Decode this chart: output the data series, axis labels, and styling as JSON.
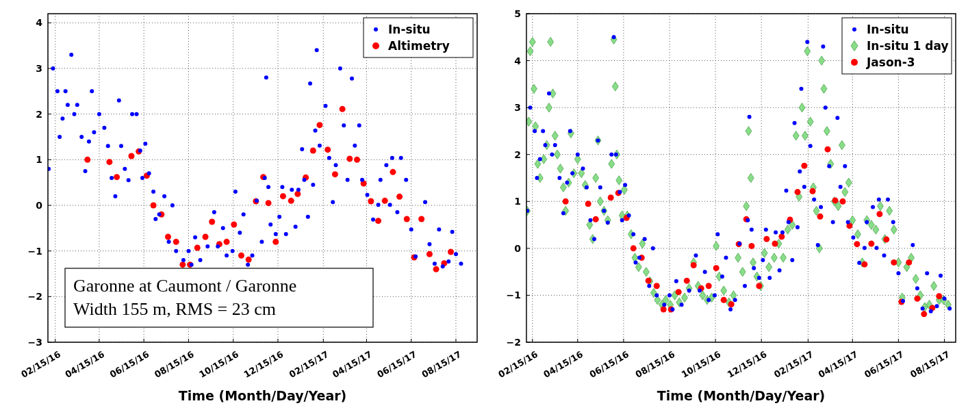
{
  "chart_data": [
    {
      "type": "scatter",
      "xlabel": "Time (Month/Day/Year)",
      "annotations": [
        "Garonne at Caumont / Garonne",
        "Width 155 m, RMS = 23 cm"
      ],
      "xlim": [
        "2016-02-05",
        "2017-09-13"
      ],
      "xticks": [
        {
          "value": "2016-02-15",
          "label": "02/15/16"
        },
        {
          "value": "2016-04-15",
          "label": "04/15/16"
        },
        {
          "value": "2016-06-15",
          "label": "06/15/16"
        },
        {
          "value": "2016-08-15",
          "label": "08/15/16"
        },
        {
          "value": "2016-10-15",
          "label": "10/15/16"
        },
        {
          "value": "2016-12-15",
          "label": "12/15/16"
        },
        {
          "value": "2017-02-15",
          "label": "02/15/17"
        },
        {
          "value": "2017-04-15",
          "label": "04/15/17"
        },
        {
          "value": "2017-06-15",
          "label": "06/15/17"
        },
        {
          "value": "2017-08-15",
          "label": "08/15/17"
        }
      ],
      "ylim": [
        -3,
        4.2
      ],
      "yticks": [
        -3,
        -2,
        -1,
        0,
        1,
        2,
        3,
        4
      ],
      "grid": true,
      "legend": "top right",
      "series": [
        {
          "name": "In-situ",
          "color": "#0000ff",
          "marker": "circle",
          "x": [
            "2016-02-06",
            "2016-02-08",
            "2016-02-12",
            "2016-02-15",
            "2016-02-18",
            "2016-02-21",
            "2016-02-25",
            "2016-02-29",
            "2016-03-03",
            "2016-03-05",
            "2016-03-08",
            "2016-03-12",
            "2016-03-16",
            "2016-03-22",
            "2016-03-27",
            "2016-04-01",
            "2016-04-05",
            "2016-04-08",
            "2016-04-15",
            "2016-04-22",
            "2016-04-27",
            "2016-05-02",
            "2016-05-07",
            "2016-05-12",
            "2016-05-15",
            "2016-05-20",
            "2016-05-25",
            "2016-05-30",
            "2016-06-02",
            "2016-06-05",
            "2016-06-10",
            "2016-06-13",
            "2016-06-17",
            "2016-06-22",
            "2016-06-28",
            "2016-07-01",
            "2016-07-06",
            "2016-07-13",
            "2016-07-19",
            "2016-07-24",
            "2016-07-29",
            "2016-08-08",
            "2016-08-15",
            "2016-08-19",
            "2016-08-24",
            "2016-08-31",
            "2016-09-10",
            "2016-09-19",
            "2016-09-24",
            "2016-10-01",
            "2016-10-06",
            "2016-10-14",
            "2016-10-18",
            "2016-10-24",
            "2016-10-29",
            "2016-11-04",
            "2016-11-10",
            "2016-11-16",
            "2016-11-23",
            "2016-11-27",
            "2016-11-29",
            "2016-12-02",
            "2016-12-05",
            "2016-12-12",
            "2016-12-17",
            "2016-12-21",
            "2016-12-26",
            "2017-01-03",
            "2017-01-08",
            "2017-01-12",
            "2017-01-17",
            "2017-01-20",
            "2017-01-25",
            "2017-01-28",
            "2017-02-01",
            "2017-02-04",
            "2017-02-06",
            "2017-02-10",
            "2017-02-14",
            "2017-02-18",
            "2017-02-23",
            "2017-02-28",
            "2017-03-04",
            "2017-03-07",
            "2017-03-10",
            "2017-03-15",
            "2017-03-20",
            "2017-03-26",
            "2017-03-30",
            "2017-04-05",
            "2017-04-09",
            "2017-04-16",
            "2017-04-24",
            "2017-05-01",
            "2017-05-04",
            "2017-05-12",
            "2017-05-17",
            "2017-05-20",
            "2017-05-27",
            "2017-06-01",
            "2017-06-08",
            "2017-06-15",
            "2017-06-21",
            "2017-07-04",
            "2017-07-10",
            "2017-07-17",
            "2017-07-23",
            "2017-07-28",
            "2017-08-05",
            "2017-08-10",
            "2017-08-15",
            "2017-08-22"
          ],
          "values": [
            0.8,
            null,
            3.0,
            null,
            2.5,
            1.5,
            1.9,
            2.5,
            2.2,
            null,
            3.3,
            2.0,
            2.2,
            1.5,
            0.75,
            1.4,
            2.5,
            1.6,
            2.0,
            1.7,
            1.3,
            0.6,
            0.2,
            2.3,
            1.3,
            0.8,
            0.55,
            2.0,
            null,
            2.0,
            1.2,
            0.6,
            1.35,
            0.7,
            0.3,
            -0.3,
            -0.2,
            0.2,
            -0.8,
            0.0,
            -1.0,
            -1.2,
            -1.0,
            -1.3,
            -0.7,
            -1.2,
            -0.9,
            -0.15,
            -0.9,
            -0.5,
            -1.1,
            -1.0,
            0.3,
            -0.6,
            -0.2,
            -1.3,
            -1.1,
            0.1,
            -0.8,
            0.6,
            2.8,
            0.4,
            -0.42,
            -0.63,
            -0.25,
            0.4,
            -0.63,
            0.34,
            -0.47,
            0.34,
            1.23,
            0.56,
            -0.25,
            2.67,
            0.45,
            1.64,
            3.4,
            1.31,
            null,
            2.18,
            1.04,
            0.07,
            0.88,
            null,
            3.0,
            1.75,
            0.56,
            2.78,
            1.31,
            1.75,
            0.56,
            0.23,
            -0.31,
            0.01,
            0.56,
            0.88,
            0.01,
            1.04,
            -0.15,
            1.04,
            0.56,
            -0.53,
            -1.12,
            0.07,
            -0.85,
            -1.28,
            -0.53,
            -1.34,
            -1.23,
            -0.58,
            -1.07,
            -1.28
          ]
        },
        {
          "name": "Altimetry",
          "color": "#ff0000",
          "marker": "circle",
          "x": [
            "2016-03-30",
            "2016-04-29",
            "2016-05-09",
            "2016-05-29",
            "2016-06-08",
            "2016-06-19",
            "2016-06-28",
            "2016-07-09",
            "2016-07-18",
            "2016-07-29",
            "2016-08-07",
            "2016-08-17",
            "2016-08-27",
            "2016-09-07",
            "2016-09-16",
            "2016-09-26",
            "2016-10-06",
            "2016-10-16",
            "2016-10-26",
            "2016-11-05",
            "2016-11-15",
            "2016-11-25",
            "2016-12-02",
            "2016-12-12",
            "2016-12-22",
            "2017-01-02",
            "2017-01-11",
            "2017-01-22",
            "2017-02-01",
            "2017-02-10",
            "2017-02-21",
            "2017-03-03",
            "2017-03-13",
            "2017-03-23",
            "2017-04-02",
            "2017-04-11",
            "2017-04-21",
            "2017-05-01",
            "2017-05-10",
            "2017-05-21",
            "2017-05-30",
            "2017-06-09",
            "2017-06-19",
            "2017-06-29",
            "2017-07-10",
            "2017-07-19",
            "2017-07-30",
            "2017-08-08"
          ],
          "values": [
            1.0,
            0.95,
            0.62,
            1.08,
            1.18,
            0.65,
            0.0,
            -0.2,
            -0.69,
            -0.8,
            -1.3,
            -1.3,
            -0.93,
            -0.69,
            -0.36,
            -0.85,
            -0.8,
            -0.42,
            -1.1,
            -1.19,
            0.09,
            0.62,
            0.05,
            -0.8,
            0.2,
            0.1,
            0.25,
            0.61,
            1.2,
            1.76,
            1.22,
            0.68,
            2.11,
            1.02,
            1.0,
            0.48,
            0.09,
            -0.34,
            0.1,
            0.73,
            0.19,
            -0.3,
            -1.14,
            -0.3,
            -1.07,
            -1.4,
            -1.27,
            -1.02
          ]
        }
      ]
    },
    {
      "type": "scatter",
      "xlabel": "Time (Month/Day/Year)",
      "xlim": [
        "2016-02-07",
        "2017-08-30"
      ],
      "xticks": [
        {
          "value": "2016-02-15",
          "label": "02/15/16"
        },
        {
          "value": "2016-04-15",
          "label": "04/15/16"
        },
        {
          "value": "2016-06-15",
          "label": "06/15/16"
        },
        {
          "value": "2016-08-15",
          "label": "08/15/16"
        },
        {
          "value": "2016-10-15",
          "label": "10/15/16"
        },
        {
          "value": "2016-12-15",
          "label": "12/15/16"
        },
        {
          "value": "2017-02-15",
          "label": "02/15/17"
        },
        {
          "value": "2017-04-15",
          "label": "04/15/17"
        },
        {
          "value": "2017-06-15",
          "label": "06/15/17"
        },
        {
          "value": "2017-08-15",
          "label": "08/15/17"
        }
      ],
      "ylim": [
        -2,
        5
      ],
      "yticks": [
        -2,
        -1,
        0,
        1,
        2,
        3,
        4,
        5
      ],
      "grid": true,
      "legend": "top right",
      "series": [
        {
          "name": "In-situ",
          "color": "#0000ff",
          "marker": "circle",
          "x": [
            "2016-02-08",
            "2016-02-10",
            "2016-02-12",
            "2016-02-15",
            "2016-02-18",
            "2016-02-21",
            "2016-02-25",
            "2016-02-29",
            "2016-03-03",
            "2016-03-05",
            "2016-03-08",
            "2016-03-12",
            "2016-03-16",
            "2016-03-22",
            "2016-03-27",
            "2016-04-01",
            "2016-04-05",
            "2016-04-08",
            "2016-04-15",
            "2016-04-22",
            "2016-04-27",
            "2016-05-02",
            "2016-05-07",
            "2016-05-12",
            "2016-05-15",
            "2016-05-20",
            "2016-05-25",
            "2016-05-30",
            "2016-06-02",
            "2016-06-05",
            "2016-06-10",
            "2016-06-13",
            "2016-06-17",
            "2016-06-22",
            "2016-06-28",
            "2016-07-01",
            "2016-07-06",
            "2016-07-13",
            "2016-07-19",
            "2016-07-24",
            "2016-07-29",
            "2016-08-08",
            "2016-08-15",
            "2016-08-19",
            "2016-08-24",
            "2016-08-31",
            "2016-09-10",
            "2016-09-19",
            "2016-09-24",
            "2016-10-01",
            "2016-10-06",
            "2016-10-14",
            "2016-10-18",
            "2016-10-24",
            "2016-10-29",
            "2016-11-04",
            "2016-11-10",
            "2016-11-16",
            "2016-11-23",
            "2016-11-27",
            "2016-11-29",
            "2016-12-02",
            "2016-12-05",
            "2016-12-12",
            "2016-12-17",
            "2016-12-21",
            "2016-12-26",
            "2017-01-03",
            "2017-01-08",
            "2017-01-12",
            "2017-01-17",
            "2017-01-20",
            "2017-01-25",
            "2017-01-28",
            "2017-02-01",
            "2017-02-04",
            "2017-02-06",
            "2017-02-10",
            "2017-02-14",
            "2017-02-18",
            "2017-02-23",
            "2017-02-28",
            "2017-03-04",
            "2017-03-07",
            "2017-03-10",
            "2017-03-15",
            "2017-03-20",
            "2017-03-26",
            "2017-03-30",
            "2017-04-05",
            "2017-04-09",
            "2017-04-16",
            "2017-04-24",
            "2017-05-01",
            "2017-05-04",
            "2017-05-12",
            "2017-05-17",
            "2017-05-20",
            "2017-05-27",
            "2017-06-01",
            "2017-06-08",
            "2017-06-15",
            "2017-06-21",
            "2017-07-04",
            "2017-07-10",
            "2017-07-17",
            "2017-07-23",
            "2017-07-28",
            "2017-08-05",
            "2017-08-10",
            "2017-08-15",
            "2017-08-22"
          ],
          "values": [
            0.8,
            null,
            3.0,
            null,
            2.5,
            1.5,
            1.9,
            2.5,
            2.2,
            null,
            3.3,
            2.0,
            2.2,
            1.5,
            0.75,
            1.4,
            2.5,
            1.6,
            2.0,
            1.7,
            1.3,
            0.6,
            0.2,
            2.3,
            1.3,
            0.8,
            0.55,
            2.0,
            4.5,
            2.0,
            1.2,
            0.6,
            1.35,
            0.7,
            0.3,
            -0.3,
            -0.2,
            0.2,
            -0.8,
            0.0,
            -1.0,
            -1.2,
            -1.0,
            -1.3,
            -0.7,
            -1.2,
            -0.9,
            -0.15,
            -0.9,
            -0.5,
            -1.1,
            -1.0,
            0.3,
            -0.6,
            -0.2,
            -1.3,
            -1.1,
            0.1,
            -0.8,
            0.6,
            2.8,
            0.4,
            -0.42,
            -0.63,
            -0.25,
            0.4,
            -0.63,
            0.34,
            -0.47,
            0.34,
            1.23,
            0.56,
            -0.25,
            2.67,
            0.45,
            1.64,
            3.4,
            1.31,
            4.4,
            2.18,
            1.04,
            0.07,
            0.88,
            4.3,
            3.0,
            1.75,
            0.56,
            2.78,
            1.31,
            1.75,
            0.56,
            0.23,
            -0.31,
            0.01,
            0.56,
            0.88,
            0.01,
            1.04,
            -0.15,
            1.04,
            0.56,
            -0.53,
            -1.12,
            0.07,
            -0.85,
            -1.28,
            -0.53,
            -1.34,
            -1.23,
            -0.58,
            -1.07,
            -1.28
          ]
        },
        {
          "name": "In-situ 1 day",
          "color": "#88dd88",
          "marker": "diamond",
          "x": [
            "2016-02-08",
            "2016-02-10",
            "2016-02-12",
            "2016-02-15",
            "2016-02-17",
            "2016-02-19",
            "2016-02-22",
            "2016-02-25",
            "2016-03-01",
            "2016-03-05",
            "2016-03-08",
            "2016-03-10",
            "2016-03-13",
            "2016-03-16",
            "2016-03-19",
            "2016-03-23",
            "2016-03-27",
            "2016-03-30",
            "2016-04-03",
            "2016-04-06",
            "2016-04-10",
            "2016-04-15",
            "2016-04-20",
            "2016-04-25",
            "2016-05-01",
            "2016-05-05",
            "2016-05-09",
            "2016-05-12",
            "2016-05-15",
            "2016-05-20",
            "2016-05-25",
            "2016-05-30",
            "2016-06-02",
            "2016-06-04",
            "2016-06-06",
            "2016-06-09",
            "2016-06-13",
            "2016-06-16",
            "2016-06-20",
            "2016-06-25",
            "2016-06-30",
            "2016-07-05",
            "2016-07-10",
            "2016-07-15",
            "2016-07-20",
            "2016-07-25",
            "2016-07-30",
            "2016-08-05",
            "2016-08-10",
            "2016-08-16",
            "2016-08-22",
            "2016-08-28",
            "2016-09-04",
            "2016-09-10",
            "2016-09-16",
            "2016-09-22",
            "2016-09-28",
            "2016-10-04",
            "2016-10-10",
            "2016-10-16",
            "2016-10-20",
            "2016-10-26",
            "2016-11-02",
            "2016-11-08",
            "2016-11-14",
            "2016-11-20",
            "2016-11-25",
            "2016-11-28",
            "2016-12-01",
            "2016-12-04",
            "2016-12-09",
            "2016-12-14",
            "2016-12-19",
            "2016-12-25",
            "2017-01-01",
            "2017-01-07",
            "2017-01-13",
            "2017-01-19",
            "2017-01-25",
            "2017-01-30",
            "2017-02-03",
            "2017-02-07",
            "2017-02-11",
            "2017-02-14",
            "2017-02-18",
            "2017-02-22",
            "2017-02-26",
            "2017-03-02",
            "2017-03-05",
            "2017-03-08",
            "2017-03-12",
            "2017-03-17",
            "2017-03-22",
            "2017-03-27",
            "2017-04-01",
            "2017-04-05",
            "2017-04-10",
            "2017-04-15",
            "2017-04-22",
            "2017-04-28",
            "2017-05-04",
            "2017-05-10",
            "2017-05-16",
            "2017-05-22",
            "2017-05-28",
            "2017-06-03",
            "2017-06-09",
            "2017-06-15",
            "2017-06-20",
            "2017-06-26",
            "2017-07-02",
            "2017-07-08",
            "2017-07-14",
            "2017-07-20",
            "2017-07-26",
            "2017-08-01",
            "2017-08-08",
            "2017-08-14",
            "2017-08-20"
          ],
          "values": [
            0.8,
            2.7,
            4.2,
            4.4,
            3.4,
            2.6,
            1.8,
            1.5,
            1.9,
            2.2,
            3.0,
            4.4,
            3.3,
            2.4,
            2.0,
            1.7,
            1.3,
            0.8,
            1.4,
            2.45,
            1.6,
            1.9,
            1.6,
            1.35,
            0.5,
            0.2,
            1.5,
            2.3,
            1.0,
            0.8,
            0.6,
            1.8,
            4.45,
            3.45,
            2.0,
            1.45,
            0.7,
            1.25,
            0.7,
            0.3,
            -0.2,
            -0.4,
            0.1,
            -0.5,
            -0.7,
            -0.95,
            -1.1,
            -1.2,
            -1.1,
            -1.2,
            -1.0,
            -1.15,
            -1.05,
            -0.85,
            -0.3,
            -0.8,
            -1.0,
            -1.1,
            -1.05,
            0.05,
            -0.6,
            -0.9,
            -1.15,
            -1.0,
            -0.2,
            -0.5,
            0.9,
            2.5,
            1.5,
            -0.3,
            -0.6,
            -0.8,
            -0.1,
            -0.4,
            -0.2,
            0.1,
            -0.2,
            0.4,
            0.5,
            2.4,
            1.1,
            3.0,
            2.4,
            4.2,
            2.7,
            1.3,
            0.8,
            0.0,
            4.0,
            3.4,
            2.5,
            1.8,
            1.0,
            0.9,
            2.2,
            1.2,
            1.4,
            0.6,
            0.3,
            -0.3,
            0.6,
            0.5,
            0.4,
            0.9,
            0.2,
            0.8,
            0.4,
            -0.3,
            -1.05,
            -0.4,
            -0.2,
            -0.65,
            -1.0,
            -1.25,
            -1.2,
            -0.8,
            -1.1,
            -1.1,
            -1.2
          ]
        },
        {
          "name": "Jason-3",
          "color": "#ff0000",
          "marker": "circle",
          "x": [
            "2016-03-30",
            "2016-04-29",
            "2016-05-09",
            "2016-05-29",
            "2016-06-08",
            "2016-06-19",
            "2016-06-28",
            "2016-07-09",
            "2016-07-18",
            "2016-07-29",
            "2016-08-07",
            "2016-08-17",
            "2016-08-27",
            "2016-09-07",
            "2016-09-16",
            "2016-09-26",
            "2016-10-06",
            "2016-10-16",
            "2016-10-26",
            "2016-11-05",
            "2016-11-15",
            "2016-11-25",
            "2016-12-02",
            "2016-12-12",
            "2016-12-22",
            "2017-01-02",
            "2017-01-11",
            "2017-01-22",
            "2017-02-01",
            "2017-02-10",
            "2017-02-21",
            "2017-03-03",
            "2017-03-13",
            "2017-03-23",
            "2017-04-02",
            "2017-04-11",
            "2017-04-21",
            "2017-05-01",
            "2017-05-10",
            "2017-05-21",
            "2017-05-30",
            "2017-06-09",
            "2017-06-19",
            "2017-06-29",
            "2017-07-10",
            "2017-07-19",
            "2017-07-30",
            "2017-08-08"
          ],
          "values": [
            1.0,
            0.95,
            0.62,
            1.08,
            1.18,
            0.65,
            0.0,
            -0.2,
            -0.69,
            -0.8,
            -1.3,
            -1.3,
            -0.93,
            -0.69,
            -0.36,
            -0.85,
            -0.8,
            -0.42,
            -1.1,
            -1.19,
            0.09,
            0.62,
            0.05,
            -0.8,
            0.2,
            0.1,
            0.25,
            0.61,
            1.2,
            1.76,
            1.22,
            0.68,
            2.11,
            1.02,
            1.0,
            0.48,
            0.09,
            -0.34,
            0.1,
            0.73,
            0.19,
            -0.3,
            -1.14,
            -0.3,
            -1.07,
            -1.4,
            -1.27,
            -1.02
          ]
        }
      ]
    }
  ]
}
